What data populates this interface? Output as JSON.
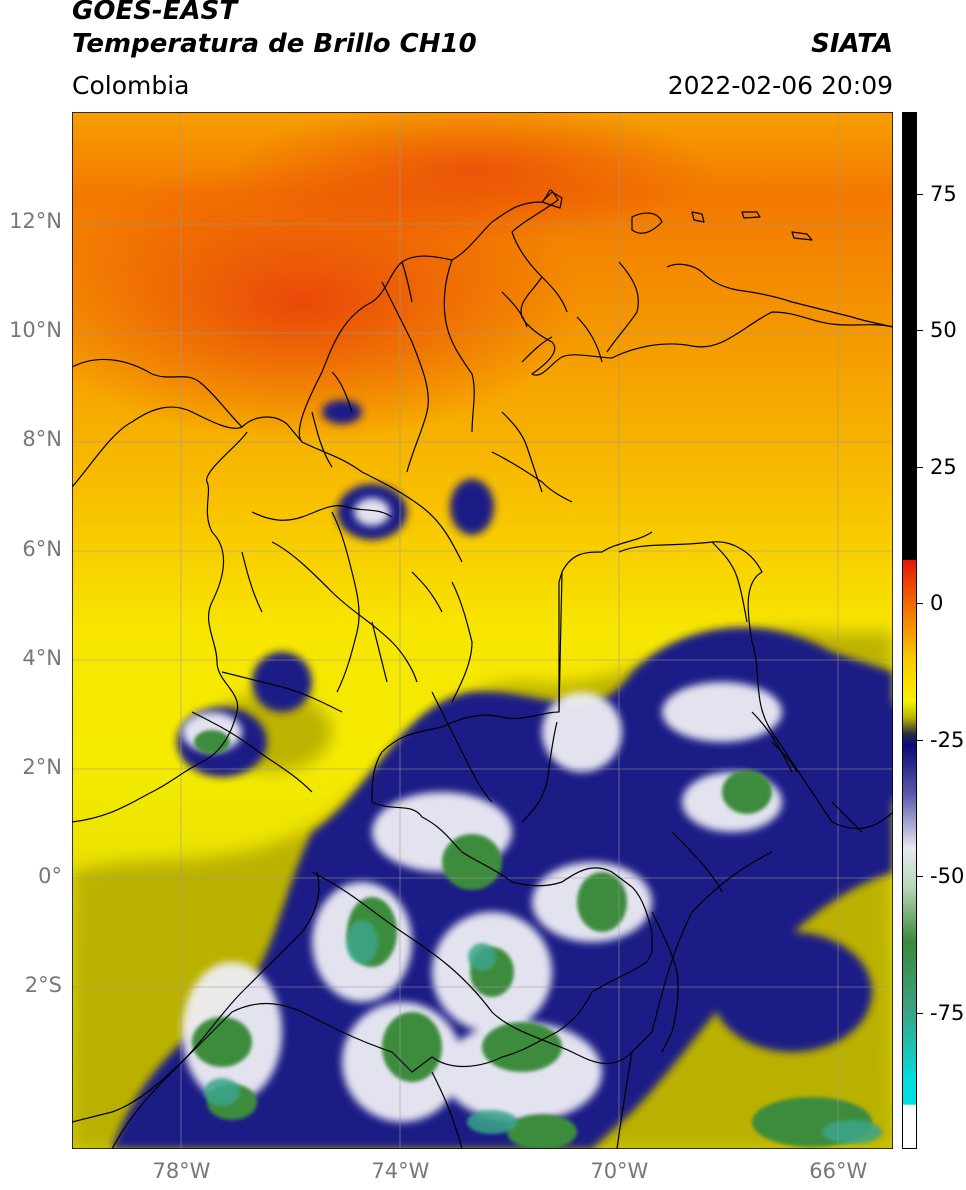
{
  "header": {
    "title_line1": "GOES-EAST",
    "title_line2": "Temperatura de Brillo CH10",
    "brand": "SIATA",
    "region": "Colombia",
    "datetime": "2022-02-06 20:09"
  },
  "map": {
    "lon_range": [
      -80,
      -65
    ],
    "lat_range": [
      -5,
      14
    ],
    "lat_ticks": [
      {
        "value": 12,
        "label": "12°N"
      },
      {
        "value": 10,
        "label": "10°N"
      },
      {
        "value": 8,
        "label": "8°N"
      },
      {
        "value": 6,
        "label": "6°N"
      },
      {
        "value": 4,
        "label": "4°N"
      },
      {
        "value": 2,
        "label": "2°N"
      },
      {
        "value": 0,
        "label": "0°"
      },
      {
        "value": -2,
        "label": "2°S"
      }
    ],
    "lon_ticks": [
      {
        "value": -78,
        "label": "78°W"
      },
      {
        "value": -74,
        "label": "74°W"
      },
      {
        "value": -70,
        "label": "70°W"
      },
      {
        "value": -66,
        "label": "66°W"
      }
    ],
    "colors": {
      "warm_red": "#e83a08",
      "orange": "#f7a000",
      "yellow": "#f7e800",
      "olive": "#b8b000",
      "navy": "#1a1f8a",
      "white": "#f4f4f6",
      "green": "#3f8f3f",
      "teal": "#3aa58a",
      "gridline": "#9a9a9a",
      "border": "#000000"
    }
  },
  "colorbar": {
    "range": [
      -100,
      90
    ],
    "ticks": [
      {
        "value": 75,
        "label": "75"
      },
      {
        "value": 50,
        "label": "50"
      },
      {
        "value": 25,
        "label": "25"
      },
      {
        "value": 0,
        "label": "0"
      },
      {
        "value": -25,
        "label": "-25"
      },
      {
        "value": -50,
        "label": "-50"
      },
      {
        "value": -75,
        "label": "-75"
      }
    ],
    "stops": [
      {
        "value": 90,
        "color": "#000000"
      },
      {
        "value": 8,
        "color": "#000000"
      },
      {
        "value": 7.9,
        "color": "#e8160a"
      },
      {
        "value": 0,
        "color": "#f36a00"
      },
      {
        "value": -10,
        "color": "#f9c800"
      },
      {
        "value": -18,
        "color": "#f7f000"
      },
      {
        "value": -21,
        "color": "#b8b400"
      },
      {
        "value": -24,
        "color": "#2c2c40"
      },
      {
        "value": -26,
        "color": "#0a0a7a"
      },
      {
        "value": -35,
        "color": "#5a5aaa"
      },
      {
        "value": -45,
        "color": "#e8e8f2"
      },
      {
        "value": -52,
        "color": "#b8d8b8"
      },
      {
        "value": -62,
        "color": "#3a8a3a"
      },
      {
        "value": -75,
        "color": "#3aa587"
      },
      {
        "value": -88,
        "color": "#00e0e0"
      },
      {
        "value": -92,
        "color": "#00e0e0"
      },
      {
        "value": -92.1,
        "color": "#ffffff"
      },
      {
        "value": -100,
        "color": "#ffffff"
      }
    ]
  }
}
